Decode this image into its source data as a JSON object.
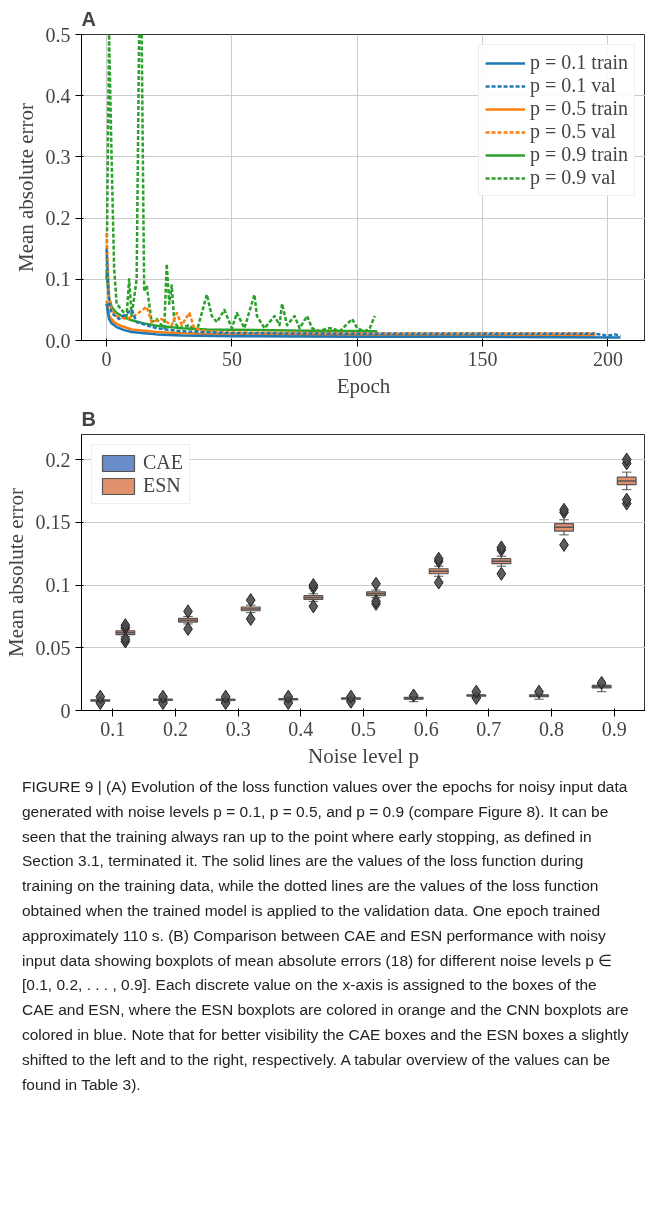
{
  "chart_data": [
    {
      "type": "line",
      "title": "A",
      "xlabel": "Epoch",
      "ylabel": "Mean absolute error",
      "xlim": [
        -10,
        215
      ],
      "ylim": [
        0,
        0.5
      ],
      "xticks": [
        0,
        50,
        100,
        150,
        200
      ],
      "yticks": [
        {
          "value": 0,
          "label": "0.0"
        },
        0.1,
        0.2,
        0.3,
        0.4,
        0.5
      ],
      "grid": true,
      "legend": "top right",
      "series": [
        {
          "name": "p = 0.1 train",
          "color": "#1f77b4",
          "line_style": "solid",
          "x": [
            0,
            1,
            2,
            4,
            7,
            10,
            15,
            20,
            30,
            50,
            100,
            150,
            205
          ],
          "values": [
            0.06,
            0.035,
            0.028,
            0.022,
            0.017,
            0.014,
            0.012,
            0.01,
            0.008,
            0.007,
            0.006,
            0.006,
            0.005
          ]
        },
        {
          "name": "p = 0.1 val",
          "color": "#1f77b4",
          "line_style": "dashed",
          "x": [
            0,
            1,
            2,
            5,
            10,
            12,
            20,
            30,
            50,
            100,
            150,
            195,
            200,
            203,
            205
          ],
          "values": [
            0.15,
            0.06,
            0.045,
            0.035,
            0.05,
            0.03,
            0.02,
            0.015,
            0.012,
            0.011,
            0.011,
            0.011,
            0.008,
            0.01,
            0.007
          ]
        },
        {
          "name": "p = 0.5 train",
          "color": "#ff7f0e",
          "line_style": "solid",
          "x": [
            0,
            1,
            3,
            5,
            10,
            20,
            30,
            50,
            100,
            150,
            195
          ],
          "values": [
            0.065,
            0.04,
            0.03,
            0.025,
            0.018,
            0.014,
            0.012,
            0.01,
            0.009,
            0.008,
            0.008
          ]
        },
        {
          "name": "p = 0.5 val",
          "color": "#ff7f0e",
          "line_style": "dashed",
          "x": [
            0,
            1,
            2,
            4,
            8,
            11,
            16,
            18,
            22,
            26,
            28,
            30,
            33,
            35,
            40,
            50,
            100,
            150,
            195
          ],
          "values": [
            0.175,
            0.07,
            0.05,
            0.04,
            0.035,
            0.04,
            0.055,
            0.03,
            0.035,
            0.025,
            0.045,
            0.025,
            0.045,
            0.02,
            0.015,
            0.013,
            0.012,
            0.012,
            0.012
          ]
        },
        {
          "name": "p = 0.9 train",
          "color": "#2ca02c",
          "line_style": "solid",
          "x": [
            0,
            1,
            2,
            4,
            7,
            10,
            15,
            20,
            30,
            40,
            60,
            80,
            108
          ],
          "values": [
            0.11,
            0.07,
            0.055,
            0.045,
            0.038,
            0.033,
            0.028,
            0.024,
            0.02,
            0.018,
            0.017,
            0.016,
            0.015
          ]
        },
        {
          "name": "p = 0.9 val",
          "color": "#2ca02c",
          "line_style": "dashed",
          "x": [
            0,
            1,
            2,
            3,
            4,
            6,
            8,
            9,
            10,
            12,
            13,
            14,
            15,
            16,
            18,
            20,
            23,
            24,
            25,
            26,
            27,
            29,
            33,
            36,
            40,
            42,
            44,
            47,
            50,
            52,
            55,
            59,
            60,
            63,
            65,
            67,
            69,
            70,
            72,
            75,
            77,
            80,
            82,
            85,
            88,
            90,
            93,
            98,
            100,
            103,
            105,
            107
          ],
          "values": [
            0.1,
            0.5,
            0.3,
            0.12,
            0.06,
            0.05,
            0.04,
            0.1,
            0.04,
            0.1,
            0.5,
            0.5,
            0.08,
            0.09,
            0.03,
            0.035,
            0.02,
            0.125,
            0.06,
            0.09,
            0.03,
            0.02,
            0.025,
            0.015,
            0.075,
            0.04,
            0.03,
            0.05,
            0.02,
            0.045,
            0.02,
            0.075,
            0.04,
            0.02,
            0.03,
            0.04,
            0.025,
            0.06,
            0.025,
            0.04,
            0.02,
            0.04,
            0.02,
            0.015,
            0.02,
            0.02,
            0.015,
            0.035,
            0.02,
            0.015,
            0.02,
            0.04
          ]
        }
      ]
    },
    {
      "type": "box",
      "title": "B",
      "xlabel": "Noise level p",
      "ylabel": "Mean absolute error",
      "categories": [
        "0.1",
        "0.2",
        "0.3",
        "0.4",
        "0.5",
        "0.6",
        "0.7",
        "0.8",
        "0.9"
      ],
      "ylim": [
        0,
        0.22
      ],
      "yticks": [
        0,
        0.05,
        0.1,
        0.15,
        0.2
      ],
      "grid": "y",
      "legend": "top left",
      "annotations": [
        "FIGURE 9 | (A) Evolution of the loss function values over the epochs for noisy input data generated with noise levels p = 0.1, p = 0.5, and p = 0.9 (compare Figure 8). It can be seen that the training always ran up to the point where early stopping, as defined in Section 3.1, terminated it. The solid lines are the values of the loss function during training on the training data, while the dotted lines are the values of the loss function obtained when the trained model is applied to the validation data. One epoch trained approximately 110 s. (B) Comparison between CAE and ESN performance with noisy input data showing boxplots of mean absolute errors (18) for different noise levels p ∈ [0.1, 0.2, . . . , 0.9]. Each discrete value on the x-axis is assigned to the boxes of the CAE and ESN, where the ESN boxplots are colored in orange and the CNN boxplots are colored in blue. Note that for better visibility the CAE boxes and the ESN boxes a slightly shifted to the left and to the right, respectively. A tabular overview of the values can be found in Table 3)."
      ],
      "series": [
        {
          "name": "CAE",
          "color": "#6a8cc8",
          "boxes": [
            {
              "low": 0.007,
              "q1": 0.0075,
              "median": 0.008,
              "q3": 0.0085,
              "high": 0.009,
              "outliers": [
                0.006,
                0.011
              ]
            },
            {
              "low": 0.007,
              "q1": 0.008,
              "median": 0.0085,
              "q3": 0.009,
              "high": 0.0095,
              "outliers": [
                0.006,
                0.011
              ]
            },
            {
              "low": 0.007,
              "q1": 0.008,
              "median": 0.0085,
              "q3": 0.009,
              "high": 0.0095,
              "outliers": [
                0.006,
                0.011
              ]
            },
            {
              "low": 0.0075,
              "q1": 0.0085,
              "median": 0.009,
              "q3": 0.0095,
              "high": 0.01,
              "outliers": [
                0.006,
                0.011
              ]
            },
            {
              "low": 0.008,
              "q1": 0.009,
              "median": 0.0095,
              "q3": 0.01,
              "high": 0.0105,
              "outliers": [
                0.007,
                0.011
              ]
            },
            {
              "low": 0.007,
              "q1": 0.009,
              "median": 0.0095,
              "q3": 0.0105,
              "high": 0.011,
              "outliers": [
                0.012
              ]
            },
            {
              "low": 0.0105,
              "q1": 0.0115,
              "median": 0.012,
              "q3": 0.0125,
              "high": 0.013,
              "outliers": [
                0.01,
                0.015
              ]
            },
            {
              "low": 0.009,
              "q1": 0.011,
              "median": 0.0115,
              "q3": 0.0125,
              "high": 0.013,
              "outliers": [
                0.015
              ]
            },
            {
              "low": 0.015,
              "q1": 0.018,
              "median": 0.019,
              "q3": 0.02,
              "high": 0.021,
              "outliers": [
                0.022
              ]
            }
          ]
        },
        {
          "name": "ESN",
          "color": "#e1926c",
          "boxes": [
            {
              "low": 0.059,
              "q1": 0.0605,
              "median": 0.062,
              "q3": 0.0635,
              "high": 0.065,
              "outliers": [
                0.055,
                0.057,
                0.066,
                0.068
              ]
            },
            {
              "low": 0.069,
              "q1": 0.0705,
              "median": 0.072,
              "q3": 0.0735,
              "high": 0.075,
              "outliers": [
                0.065,
                0.079
              ]
            },
            {
              "low": 0.078,
              "q1": 0.0795,
              "median": 0.081,
              "q3": 0.0825,
              "high": 0.084,
              "outliers": [
                0.073,
                0.088
              ]
            },
            {
              "low": 0.087,
              "q1": 0.0885,
              "median": 0.09,
              "q3": 0.0915,
              "high": 0.093,
              "outliers": [
                0.083,
                0.098,
                0.1
              ]
            },
            {
              "low": 0.09,
              "q1": 0.0915,
              "median": 0.093,
              "q3": 0.0945,
              "high": 0.096,
              "outliers": [
                0.085,
                0.087,
                0.101
              ]
            },
            {
              "low": 0.107,
              "q1": 0.109,
              "median": 0.111,
              "q3": 0.113,
              "high": 0.115,
              "outliers": [
                0.102,
                0.119,
                0.121
              ]
            },
            {
              "low": 0.115,
              "q1": 0.117,
              "median": 0.119,
              "q3": 0.121,
              "high": 0.123,
              "outliers": [
                0.109,
                0.128,
                0.13
              ]
            },
            {
              "low": 0.14,
              "q1": 0.143,
              "median": 0.146,
              "q3": 0.149,
              "high": 0.152,
              "outliers": [
                0.132,
                0.158,
                0.16
              ]
            },
            {
              "low": 0.176,
              "q1": 0.18,
              "median": 0.183,
              "q3": 0.186,
              "high": 0.19,
              "outliers": [
                0.165,
                0.168,
                0.197,
                0.2
              ]
            }
          ]
        }
      ]
    }
  ]
}
